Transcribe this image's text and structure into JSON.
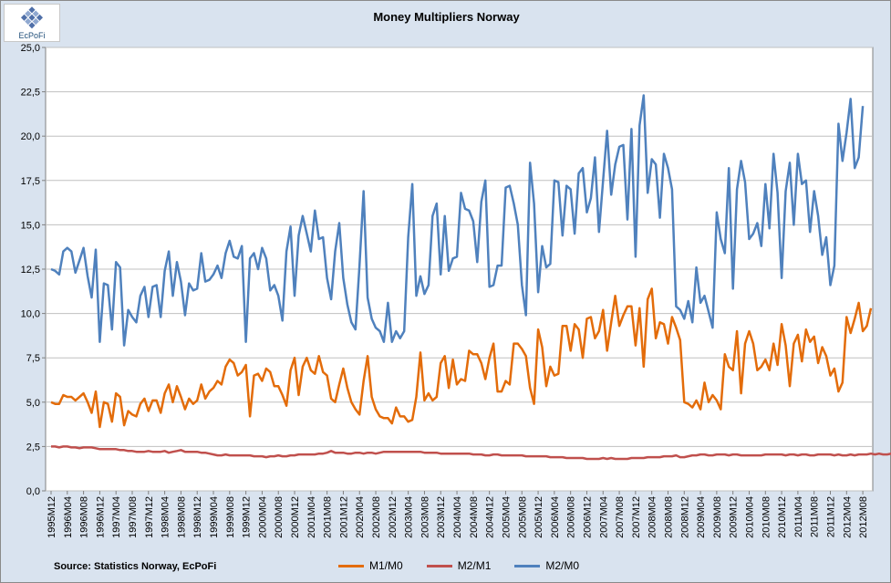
{
  "logo": {
    "text": "EcPoFi"
  },
  "source": "Source: Statistics Norway, EcPoFi",
  "colors": {
    "m1m0": "#e36c0a",
    "m2m1": "#c0504d",
    "m2m0": "#4f81bd",
    "plot_bg": "#ffffff",
    "frame_bg": "#d9e3ef"
  },
  "chart_data": {
    "type": "line",
    "title": "Money Multipliers Norway",
    "xlabel": "",
    "ylabel": "",
    "ylim": [
      0,
      25
    ],
    "yticks": [
      "0,0",
      "2,5",
      "5,0",
      "7,5",
      "10,0",
      "12,5",
      "15,0",
      "17,5",
      "20,0",
      "22,5",
      "25,0"
    ],
    "grid": true,
    "legend_position": "bottom",
    "x_start": "1995M12",
    "x_end": "2012M08",
    "xtick_labels": [
      "1995M12",
      "1996M04",
      "1996M08",
      "1996M12",
      "1997M04",
      "1997M08",
      "1997M12",
      "1998M04",
      "1998M08",
      "1998M12",
      "1999M04",
      "1999M08",
      "1999M12",
      "2000M04",
      "2000M08",
      "2000M12",
      "2001M04",
      "2001M08",
      "2001M12",
      "2002M04",
      "2002M08",
      "2002M12",
      "2003M04",
      "2003M08",
      "2003M12",
      "2004M04",
      "2004M08",
      "2004M12",
      "2005M04",
      "2005M08",
      "2005M12",
      "2006M04",
      "2006M08",
      "2006M12",
      "2007M04",
      "2007M08",
      "2007M12",
      "2008M04",
      "2008M08",
      "2008M12",
      "2009M04",
      "2009M08",
      "2009M12",
      "2010M04",
      "2010M08",
      "2010M12",
      "2011M04",
      "2011M08",
      "2011M12",
      "2012M04",
      "2012M08"
    ],
    "series": [
      {
        "name": "M1/M0",
        "key": "m1m0",
        "values": [
          5.0,
          4.9,
          4.9,
          5.4,
          5.3,
          5.3,
          5.1,
          5.3,
          5.5,
          5.0,
          4.4,
          5.6,
          3.6,
          5.0,
          4.9,
          3.9,
          5.5,
          5.3,
          3.7,
          4.5,
          4.3,
          4.2,
          4.9,
          5.2,
          4.5,
          5.1,
          5.1,
          4.4,
          5.5,
          6.0,
          5.0,
          5.9,
          5.3,
          4.6,
          5.2,
          4.9,
          5.1,
          6.0,
          5.2,
          5.6,
          5.8,
          6.2,
          6.0,
          7.0,
          7.4,
          7.2,
          6.5,
          6.7,
          7.1,
          4.2,
          6.5,
          6.6,
          6.2,
          6.9,
          6.7,
          5.9,
          5.9,
          5.4,
          4.8,
          6.8,
          7.5,
          5.4,
          7.0,
          7.5,
          6.8,
          6.6,
          7.6,
          6.7,
          6.5,
          5.2,
          5.0,
          6.0,
          6.9,
          5.8,
          5.0,
          4.6,
          4.3,
          6.2,
          7.6,
          5.3,
          4.6,
          4.2,
          4.1,
          4.1,
          3.8,
          4.7,
          4.2,
          4.2,
          3.9,
          4.0,
          5.3,
          7.8,
          5.1,
          5.5,
          5.1,
          5.3,
          7.2,
          7.6,
          5.8,
          7.4,
          6.0,
          6.3,
          6.2,
          7.9,
          7.7,
          7.7,
          7.2,
          6.3,
          7.5,
          8.3,
          5.6,
          5.6,
          6.2,
          6.0,
          8.3,
          8.3,
          8.0,
          7.6,
          5.8,
          4.9,
          9.1,
          8.1,
          5.9,
          7.0,
          6.5,
          6.6,
          9.3,
          9.3,
          7.9,
          9.4,
          9.1,
          7.5,
          9.7,
          9.8,
          8.6,
          9.0,
          10.2,
          7.9,
          9.5,
          11.0,
          9.3,
          9.9,
          10.4,
          10.4,
          8.2,
          10.3,
          7.0,
          10.8,
          11.4,
          8.6,
          9.5,
          9.4,
          8.3,
          9.8,
          9.2,
          8.5,
          5.0,
          4.9,
          4.7,
          5.1,
          4.6,
          6.1,
          5.0,
          5.4,
          5.1,
          4.6,
          7.7,
          7.0,
          6.8,
          9.0,
          5.5,
          8.3,
          9.0,
          8.3,
          6.8,
          7.0,
          7.4,
          6.8,
          8.3,
          7.1,
          9.4,
          8.2,
          5.9,
          8.3,
          8.8,
          7.3,
          9.1,
          8.4,
          8.7,
          7.2,
          8.1,
          7.6,
          6.5,
          6.9,
          5.6,
          6.1,
          9.8,
          8.9,
          9.7,
          10.6,
          9.0,
          9.3,
          10.3
        ]
      },
      {
        "name": "M2/M1",
        "key": "m2m1",
        "values": [
          2.5,
          2.5,
          2.45,
          2.5,
          2.5,
          2.45,
          2.45,
          2.4,
          2.45,
          2.45,
          2.45,
          2.4,
          2.35,
          2.35,
          2.35,
          2.35,
          2.35,
          2.3,
          2.3,
          2.25,
          2.25,
          2.2,
          2.2,
          2.2,
          2.25,
          2.2,
          2.2,
          2.2,
          2.25,
          2.15,
          2.2,
          2.25,
          2.3,
          2.2,
          2.2,
          2.2,
          2.2,
          2.15,
          2.15,
          2.1,
          2.05,
          2.0,
          2.0,
          2.05,
          2.0,
          2.0,
          2.0,
          2.0,
          2.0,
          2.0,
          1.95,
          1.95,
          1.95,
          1.9,
          1.95,
          1.95,
          2.0,
          1.95,
          1.95,
          2.0,
          2.0,
          2.05,
          2.05,
          2.05,
          2.05,
          2.05,
          2.1,
          2.1,
          2.15,
          2.25,
          2.15,
          2.15,
          2.15,
          2.1,
          2.1,
          2.15,
          2.15,
          2.1,
          2.15,
          2.15,
          2.1,
          2.15,
          2.2,
          2.2,
          2.2,
          2.2,
          2.2,
          2.2,
          2.2,
          2.2,
          2.2,
          2.2,
          2.15,
          2.15,
          2.15,
          2.15,
          2.1,
          2.1,
          2.1,
          2.1,
          2.1,
          2.1,
          2.1,
          2.1,
          2.05,
          2.05,
          2.05,
          2.0,
          2.0,
          2.05,
          2.05,
          2.0,
          2.0,
          2.0,
          2.0,
          2.0,
          2.0,
          1.95,
          1.95,
          1.95,
          1.95,
          1.95,
          1.95,
          1.9,
          1.9,
          1.9,
          1.9,
          1.85,
          1.85,
          1.85,
          1.85,
          1.85,
          1.8,
          1.8,
          1.8,
          1.8,
          1.85,
          1.8,
          1.85,
          1.8,
          1.8,
          1.8,
          1.8,
          1.85,
          1.85,
          1.85,
          1.85,
          1.9,
          1.9,
          1.9,
          1.9,
          1.95,
          1.95,
          1.95,
          2.0,
          1.9,
          1.9,
          1.95,
          2.0,
          2.0,
          2.05,
          2.05,
          2.0,
          2.0,
          2.05,
          2.05,
          2.05,
          2.0,
          2.05,
          2.05,
          2.0,
          2.0,
          2.0,
          2.0,
          2.0,
          2.0,
          2.05,
          2.05,
          2.05,
          2.05,
          2.05,
          2.0,
          2.05,
          2.05,
          2.0,
          2.05,
          2.05,
          2.0,
          2.0,
          2.05,
          2.05,
          2.05,
          2.05,
          2.0,
          2.05,
          2.0,
          2.0,
          2.05,
          2.0,
          2.05,
          2.05,
          2.05,
          2.1,
          2.05,
          2.1,
          2.05,
          2.05,
          2.1
        ]
      },
      {
        "name": "M2/M0",
        "key": "m2m0",
        "values": [
          12.5,
          12.4,
          12.2,
          13.5,
          13.7,
          13.5,
          12.3,
          13.0,
          13.7,
          12.1,
          10.9,
          13.6,
          8.4,
          11.7,
          11.6,
          9.1,
          12.9,
          12.6,
          8.2,
          10.2,
          9.8,
          9.5,
          11.0,
          11.5,
          9.8,
          11.5,
          11.6,
          9.8,
          12.4,
          13.5,
          11.0,
          12.9,
          11.8,
          9.9,
          11.7,
          11.3,
          11.4,
          13.4,
          11.8,
          11.9,
          12.2,
          12.7,
          12.0,
          13.4,
          14.1,
          13.2,
          13.1,
          13.8,
          8.4,
          13.1,
          13.4,
          12.5,
          13.7,
          13.1,
          11.3,
          11.6,
          11.0,
          9.6,
          13.5,
          14.9,
          11.0,
          14.4,
          15.5,
          14.5,
          13.5,
          15.8,
          14.2,
          14.3,
          12.0,
          10.8,
          13.5,
          15.1,
          12.0,
          10.5,
          9.5,
          9.1,
          12.7,
          16.9,
          10.9,
          9.7,
          9.2,
          9.0,
          8.4,
          10.6,
          8.4,
          9.0,
          8.6,
          9.0,
          14.3,
          17.3,
          11.0,
          12.1,
          11.1,
          11.6,
          15.5,
          16.2,
          12.2,
          15.5,
          12.4,
          13.1,
          13.2,
          16.8,
          15.9,
          15.8,
          15.2,
          12.9,
          16.3,
          17.5,
          11.5,
          11.6,
          12.7,
          12.7,
          17.1,
          17.2,
          16.2,
          15.0,
          11.6,
          9.9,
          18.5,
          16.2,
          11.2,
          13.8,
          12.6,
          12.8,
          17.5,
          17.4,
          14.4,
          17.2,
          17.0,
          14.5,
          17.9,
          18.2,
          15.7,
          16.5,
          18.8,
          14.6,
          17.5,
          20.3,
          16.7,
          18.4,
          19.4,
          19.5,
          15.3,
          20.4,
          13.2,
          20.6,
          22.3,
          16.8,
          18.7,
          18.4,
          15.4,
          19.0,
          18.2,
          17.0,
          10.4,
          10.2,
          9.7,
          10.7,
          9.5,
          12.6,
          10.6,
          11.0,
          10.1,
          9.2,
          15.7,
          14.2,
          13.4,
          18.2,
          11.4,
          17.0,
          18.6,
          17.4,
          14.2,
          14.5,
          15.1,
          13.8,
          17.3,
          14.8,
          19.0,
          16.8,
          12.0,
          16.9,
          18.5,
          15.0,
          19.0,
          17.3,
          17.5,
          14.6,
          16.9,
          15.5,
          13.3,
          14.3,
          11.6,
          12.7,
          20.7,
          18.6,
          20.2,
          22.1,
          18.2,
          18.8,
          21.7
        ]
      }
    ]
  }
}
